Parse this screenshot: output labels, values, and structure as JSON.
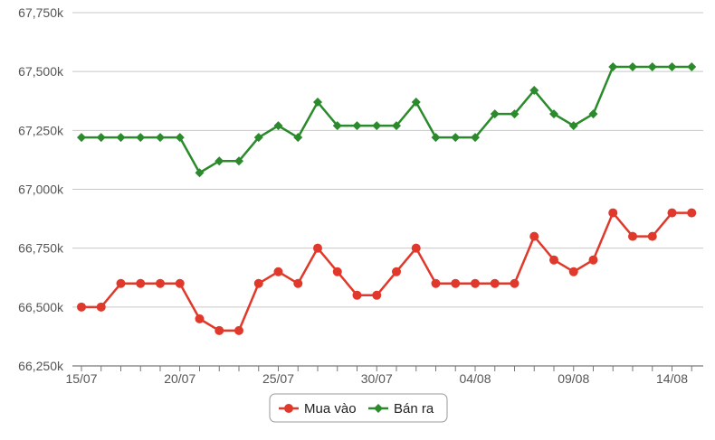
{
  "chart_data": {
    "type": "line",
    "title": "",
    "xlabel": "",
    "ylabel": "",
    "x": [
      "15/07",
      "16/07",
      "17/07",
      "18/07",
      "19/07",
      "20/07",
      "21/07",
      "22/07",
      "23/07",
      "24/07",
      "25/07",
      "26/07",
      "27/07",
      "28/07",
      "29/07",
      "30/07",
      "31/07",
      "01/08",
      "02/08",
      "03/08",
      "04/08",
      "05/08",
      "06/08",
      "07/08",
      "08/08",
      "09/08",
      "10/08",
      "11/08",
      "12/08",
      "13/08",
      "14/08",
      "15/08"
    ],
    "x_tick_labels": [
      "15/07",
      "20/07",
      "25/07",
      "30/07",
      "04/08",
      "09/08",
      "14/08"
    ],
    "y_tick_labels": [
      "66,250k",
      "66,500k",
      "66,750k",
      "67,000k",
      "67,250k",
      "67,500k",
      "67,750k"
    ],
    "ylim": [
      66250,
      67750
    ],
    "y_ticks": [
      66250,
      66500,
      66750,
      67000,
      67250,
      67500,
      67750
    ],
    "grid": "horizontal",
    "legend_position": "bottom-center",
    "series": [
      {
        "name": "Mua vào",
        "color": "#e0392b",
        "marker": "circle",
        "values": [
          66500,
          66500,
          66600,
          66600,
          66600,
          66600,
          66450,
          66400,
          66400,
          66600,
          66650,
          66600,
          66750,
          66650,
          66550,
          66550,
          66650,
          66750,
          66600,
          66600,
          66600,
          66600,
          66600,
          66800,
          66700,
          66650,
          66700,
          66900,
          66800,
          66800,
          66900,
          66900
        ]
      },
      {
        "name": "Bán ra",
        "color": "#2b8a2b",
        "marker": "diamond",
        "values": [
          67220,
          67220,
          67220,
          67220,
          67220,
          67220,
          67070,
          67120,
          67120,
          67220,
          67270,
          67220,
          67370,
          67270,
          67270,
          67270,
          67270,
          67370,
          67220,
          67220,
          67220,
          67320,
          67320,
          67420,
          67320,
          67270,
          67320,
          67520,
          67520,
          67520,
          67520,
          67520
        ]
      }
    ]
  }
}
